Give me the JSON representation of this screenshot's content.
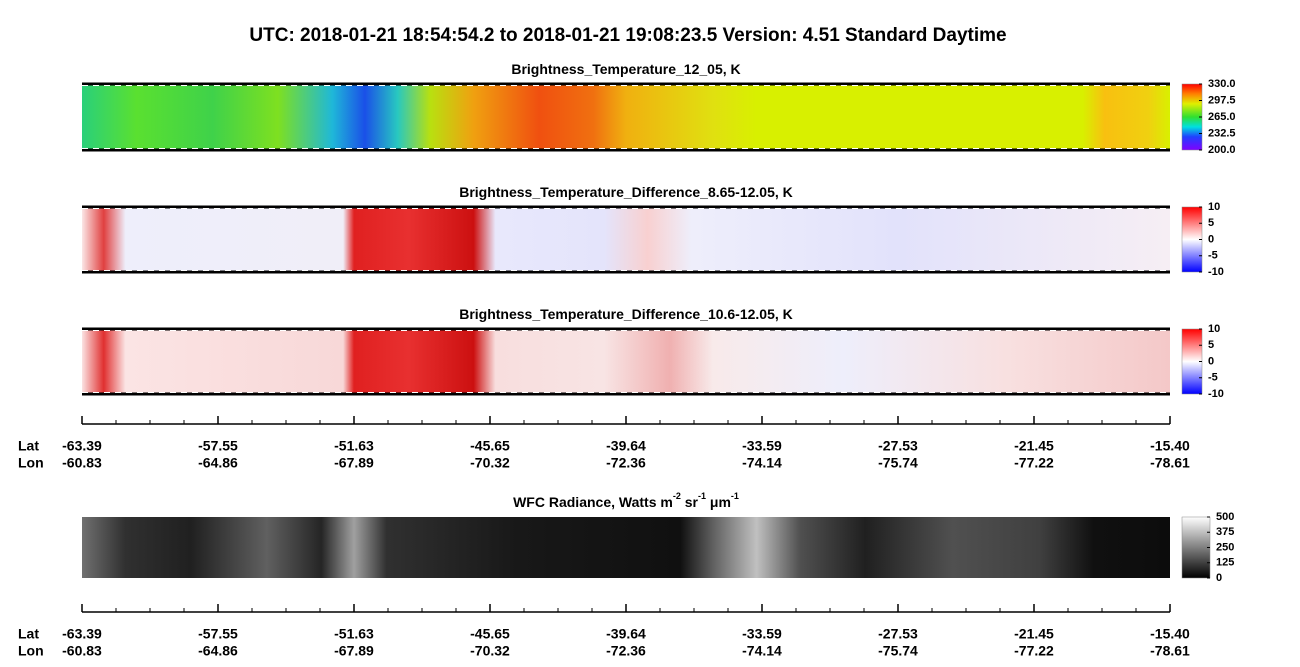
{
  "title": "UTC:  2018-01-21   18:54:54.2  to  2018-01-21   19:08:23.5    Version: 4.51  Standard Daytime",
  "panels": [
    {
      "title": [
        [
          "Brightness_Temperature_12_05, K",
          null
        ]
      ],
      "colormap": "rainbow",
      "clim": [
        200,
        330
      ],
      "cticks": [
        {
          "value": 330,
          "label": "330.0"
        },
        {
          "value": 297.5,
          "label": "297.5"
        },
        {
          "value": 265,
          "label": "265.0"
        },
        {
          "value": 232.5,
          "label": "232.5"
        },
        {
          "value": 200,
          "label": "200.0"
        }
      ]
    },
    {
      "title": [
        [
          "Brightness_Temperature_Difference_8.65-12.05, K",
          null
        ]
      ],
      "colormap": "bwr",
      "clim": [
        -10,
        10
      ],
      "cticks": [
        10,
        5,
        0,
        -5,
        -10
      ]
    },
    {
      "title": [
        [
          "Brightness_Temperature_Difference_10.6-12.05, K",
          null
        ]
      ],
      "colormap": "bwr",
      "clim": [
        -10,
        10
      ],
      "cticks": [
        10,
        5,
        0,
        -5,
        -10
      ]
    },
    {
      "title": [
        [
          "WFC Radiance, Watts m",
          "-2"
        ],
        [
          " sr",
          "-1"
        ],
        [
          " μm",
          "-1"
        ]
      ],
      "colormap": "gray",
      "clim": [
        0,
        500
      ],
      "cticks": [
        500,
        375,
        250,
        125,
        0
      ]
    }
  ],
  "track": {
    "row_labels": [
      "Lat",
      "Lon"
    ],
    "lat": [
      -63.39,
      -57.55,
      -51.63,
      -45.65,
      -39.64,
      -33.59,
      -27.53,
      -21.45,
      {
        "value": -15.4,
        "label": "-15.40"
      }
    ],
    "lon": [
      -60.83,
      -64.86,
      -67.89,
      -70.32,
      -72.36,
      -74.14,
      -75.74,
      -77.22,
      -78.61
    ]
  }
}
